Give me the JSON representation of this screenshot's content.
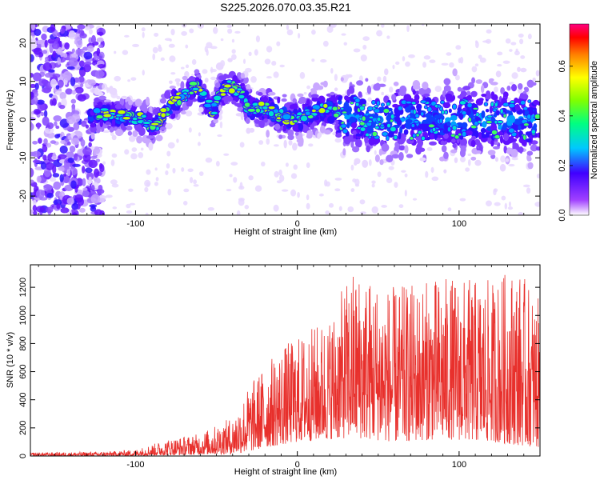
{
  "title": "S225.2026.070.03.35.R21",
  "chart_data": [
    {
      "type": "heatmap",
      "title": "S225.2026.070.03.35.R21",
      "xlabel": "Height of straight line (km)",
      "ylabel": "Frequency (Hz)",
      "xlim": [
        -165,
        150
      ],
      "ylim": [
        -25,
        25
      ],
      "xticks": [
        -100,
        0,
        100
      ],
      "yticks": [
        -20,
        -10,
        0,
        10,
        20
      ],
      "grid": false,
      "colorbar": {
        "label": "Normalized spectral amplitude",
        "range": [
          0.0,
          0.77
        ],
        "ticks": [
          0.0,
          0.2,
          0.4,
          0.6
        ],
        "colormap": [
          "#ffffff",
          "#8000ff",
          "#0000ff",
          "#00c8ff",
          "#00ff80",
          "#80ff00",
          "#ffff00",
          "#ff8000",
          "#ff0000",
          "#ff0080"
        ]
      },
      "ridge": [
        {
          "x": -125,
          "f": 2
        },
        {
          "x": -115,
          "f": 1
        },
        {
          "x": -105,
          "f": 1
        },
        {
          "x": -95,
          "f": 0
        },
        {
          "x": -88,
          "f": -2
        },
        {
          "x": -80,
          "f": 3
        },
        {
          "x": -75,
          "f": 5
        },
        {
          "x": -68,
          "f": 7
        },
        {
          "x": -62,
          "f": 9
        },
        {
          "x": -57,
          "f": 5
        },
        {
          "x": -52,
          "f": 2
        },
        {
          "x": -48,
          "f": 7
        },
        {
          "x": -42,
          "f": 9
        },
        {
          "x": -35,
          "f": 7
        },
        {
          "x": -30,
          "f": 3
        },
        {
          "x": -25,
          "f": 3
        },
        {
          "x": -20,
          "f": 3
        },
        {
          "x": -15,
          "f": 2
        },
        {
          "x": -10,
          "f": 1
        },
        {
          "x": -5,
          "f": 0
        },
        {
          "x": 0,
          "f": 0
        },
        {
          "x": 5,
          "f": 1
        },
        {
          "x": 10,
          "f": 2
        },
        {
          "x": 18,
          "f": 3
        },
        {
          "x": 30,
          "f": 1
        },
        {
          "x": 50,
          "f": 0
        },
        {
          "x": 75,
          "f": 0
        },
        {
          "x": 100,
          "f": 0
        },
        {
          "x": 125,
          "f": 0
        },
        {
          "x": 148,
          "f": 0
        }
      ]
    },
    {
      "type": "line",
      "xlabel": "Height of straight line (km)",
      "ylabel": "SNR (10 * v/v)",
      "xlim": [
        -165,
        150
      ],
      "ylim": [
        0,
        1360
      ],
      "xticks": [
        -100,
        0,
        100
      ],
      "yticks": [
        0,
        200,
        400,
        600,
        800,
        1000,
        1200
      ],
      "grid": false,
      "color": "#e8302c",
      "envelope": [
        {
          "x": -165,
          "low": 0,
          "high": 25
        },
        {
          "x": -120,
          "low": 0,
          "high": 30
        },
        {
          "x": -100,
          "low": 2,
          "high": 45
        },
        {
          "x": -80,
          "low": 5,
          "high": 120
        },
        {
          "x": -60,
          "low": 10,
          "high": 160
        },
        {
          "x": -40,
          "low": 15,
          "high": 280
        },
        {
          "x": -30,
          "low": 30,
          "high": 500
        },
        {
          "x": -20,
          "low": 60,
          "high": 650
        },
        {
          "x": -10,
          "low": 80,
          "high": 780
        },
        {
          "x": 0,
          "low": 100,
          "high": 850
        },
        {
          "x": 20,
          "low": 120,
          "high": 1000
        },
        {
          "x": 35,
          "low": 130,
          "high": 1350
        },
        {
          "x": 60,
          "low": 100,
          "high": 1200
        },
        {
          "x": 90,
          "low": 120,
          "high": 1280
        },
        {
          "x": 120,
          "low": 100,
          "high": 1250
        },
        {
          "x": 135,
          "low": 80,
          "high": 1360
        },
        {
          "x": 150,
          "low": 60,
          "high": 1100
        }
      ]
    }
  ]
}
